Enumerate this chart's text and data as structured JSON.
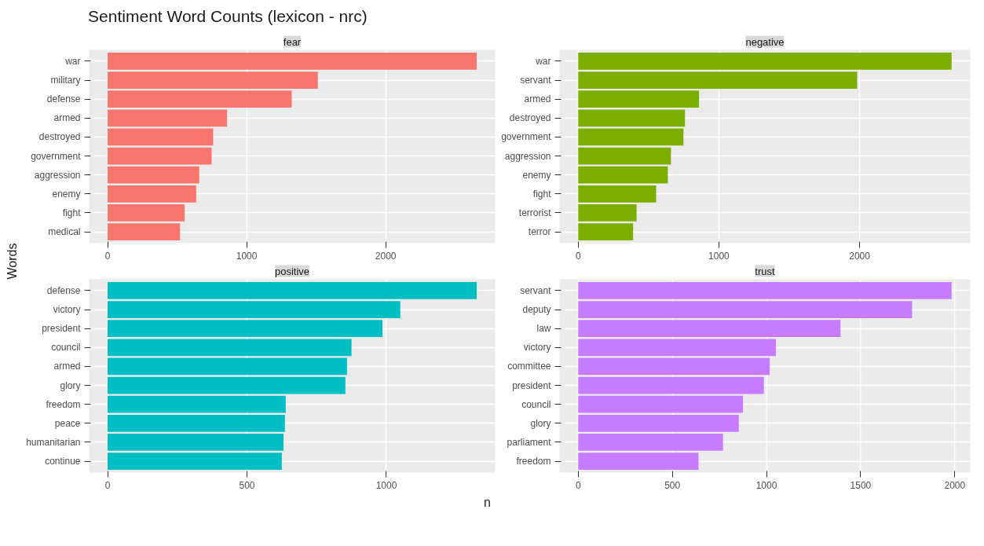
{
  "chart_data": [
    {
      "type": "bar",
      "orientation": "horizontal",
      "title": "fear",
      "annotations": [
        "Sentiment Word Counts (lexicon - nrc)"
      ],
      "xlabel": "n",
      "ylabel": "Words",
      "categories": [
        "war",
        "military",
        "defense",
        "armed",
        "destroyed",
        "government",
        "aggression",
        "enemy",
        "fight",
        "medical"
      ],
      "values": [
        2654,
        1512,
        1324,
        859,
        759,
        748,
        659,
        637,
        554,
        521
      ],
      "color": "#f8766d",
      "xlim": [
        -132.7,
        2786.7
      ],
      "xticks": [
        0,
        1000,
        2000
      ],
      "grid": true
    },
    {
      "type": "bar",
      "orientation": "horizontal",
      "title": "negative",
      "categories": [
        "war",
        "servant",
        "armed",
        "destroyed",
        "government",
        "aggression",
        "enemy",
        "fight",
        "terrorist",
        "terror"
      ],
      "values": [
        2654,
        1983,
        859,
        759,
        748,
        659,
        637,
        554,
        415,
        390
      ],
      "color": "#7cae00",
      "xlim": [
        -132.7,
        2786.7
      ],
      "xticks": [
        0,
        1000,
        2000
      ],
      "grid": true
    },
    {
      "type": "bar",
      "orientation": "horizontal",
      "title": "positive",
      "categories": [
        "defense",
        "victory",
        "president",
        "council",
        "armed",
        "glory",
        "freedom",
        "peace",
        "humanitarian",
        "continue"
      ],
      "values": [
        1324,
        1050,
        986,
        875,
        859,
        853,
        639,
        636,
        631,
        625
      ],
      "color": "#00bfc4",
      "xlim": [
        -66.2,
        1390.2
      ],
      "xticks": [
        0,
        500,
        1000
      ],
      "grid": true
    },
    {
      "type": "bar",
      "orientation": "horizontal",
      "title": "trust",
      "categories": [
        "servant",
        "deputy",
        "law",
        "victory",
        "committee",
        "president",
        "council",
        "glory",
        "parliament",
        "freedom"
      ],
      "values": [
        1983,
        1773,
        1393,
        1050,
        1017,
        986,
        875,
        853,
        769,
        639
      ],
      "color": "#c77cff",
      "xlim": [
        -99.15,
        2082.15
      ],
      "xticks": [
        0,
        500,
        1000,
        1500,
        2000
      ],
      "grid": true
    }
  ]
}
